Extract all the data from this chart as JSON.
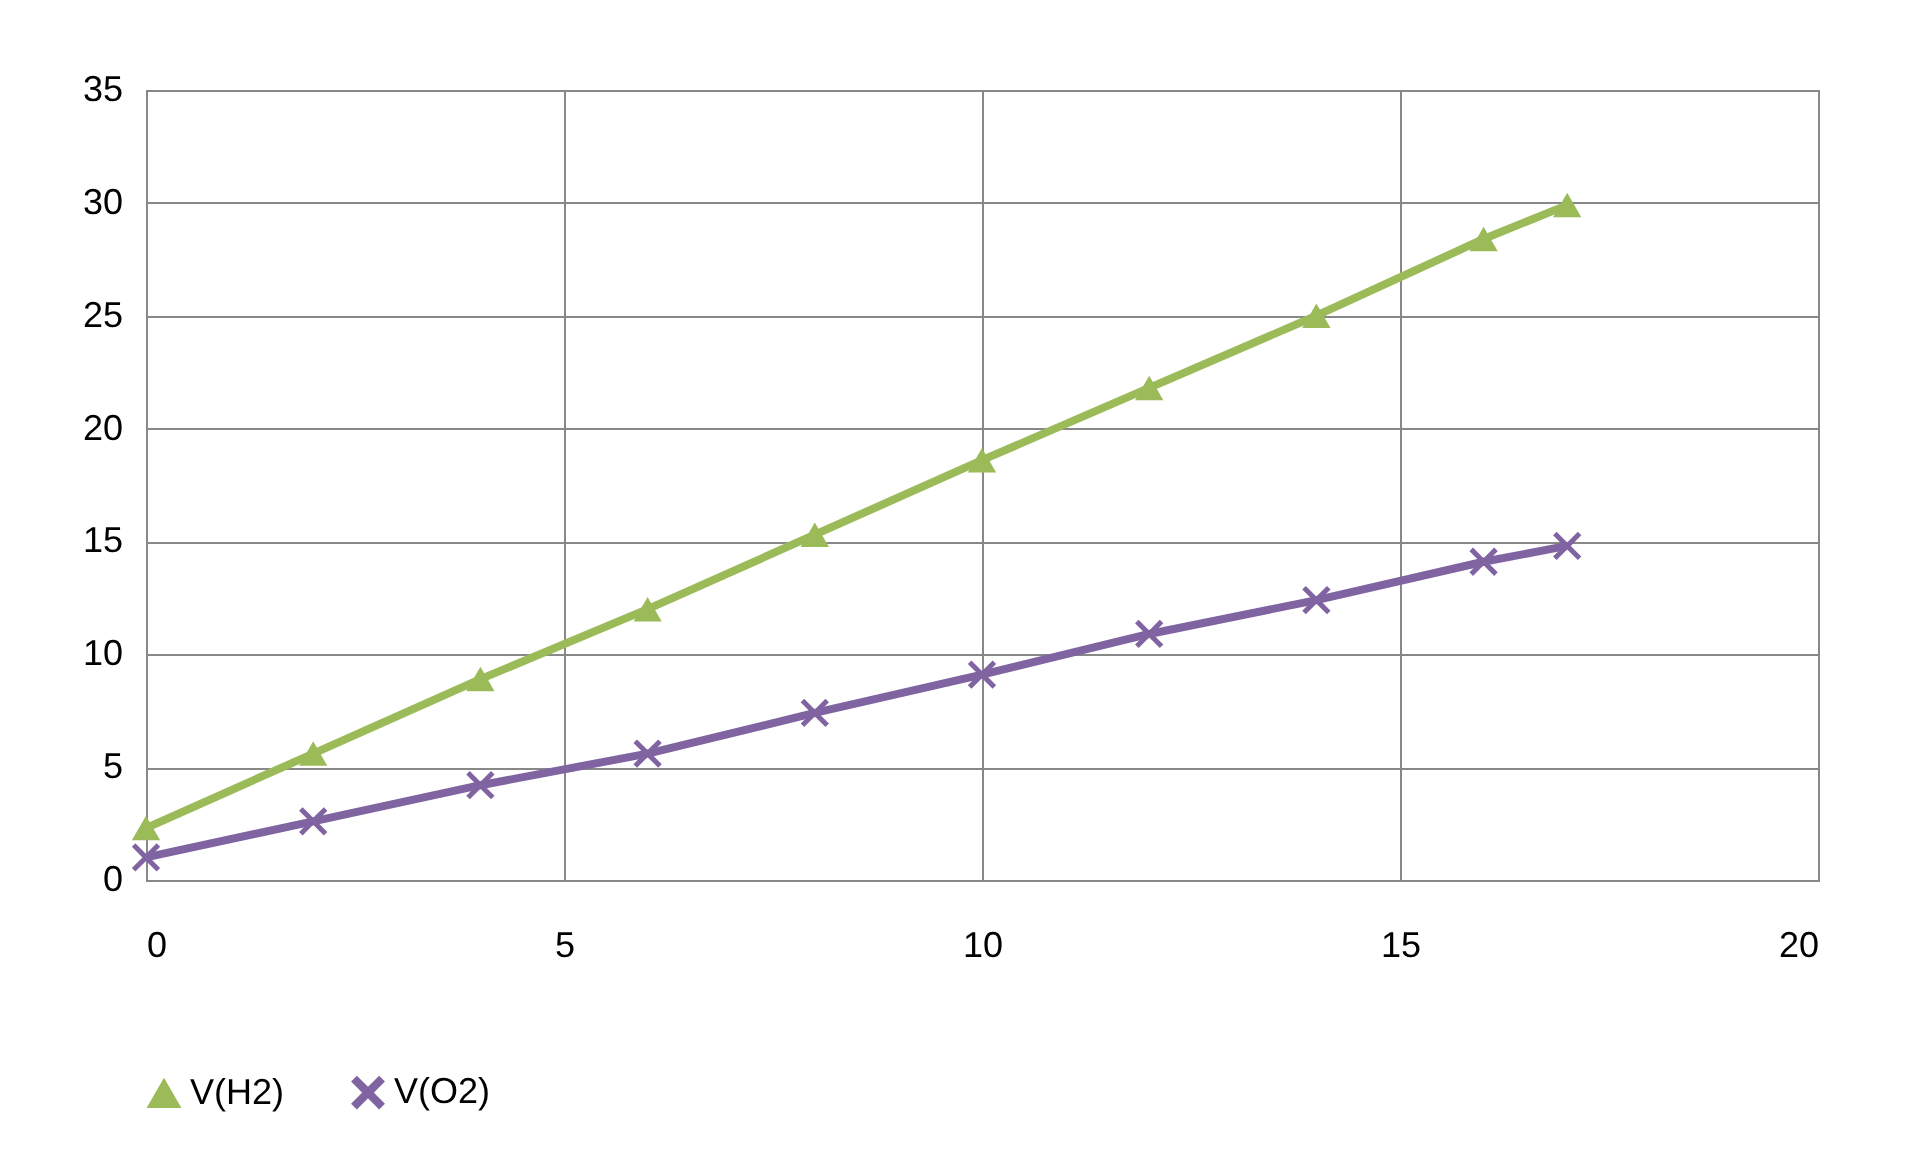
{
  "chart_data": {
    "type": "line",
    "x": [
      0,
      2,
      4,
      6,
      8,
      10,
      12,
      14,
      16,
      17
    ],
    "series": [
      {
        "name": "V(H2)",
        "color": "#9bbb59",
        "marker": "triangle",
        "values": [
          2.3,
          5.6,
          8.9,
          12.0,
          15.3,
          18.6,
          21.8,
          25.0,
          28.4,
          29.9
        ]
      },
      {
        "name": "V(O2)",
        "color": "#8064a2",
        "marker": "cross",
        "values": [
          1.0,
          2.6,
          4.2,
          5.6,
          7.4,
          9.1,
          10.9,
          12.4,
          14.1,
          14.8
        ]
      }
    ],
    "xlim": [
      0,
      20
    ],
    "xticks": [
      0,
      5,
      10,
      15,
      20
    ],
    "ylim": [
      0,
      35
    ],
    "yticks": [
      0,
      5,
      10,
      15,
      20,
      25,
      30,
      35
    ],
    "grid": true,
    "legend": "bottom"
  }
}
